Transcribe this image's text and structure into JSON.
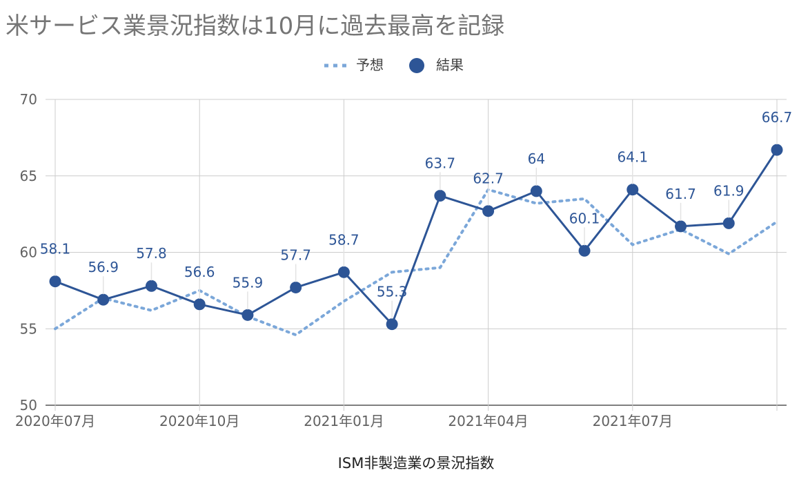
{
  "chart_data": {
    "type": "line",
    "title": "米サービス業景況指数は10月に過去最高を記録",
    "xlabel": "ISM非製造業の景況指数",
    "ylabel": "",
    "x": [
      "2020年07月",
      "2020年08月",
      "2020年09月",
      "2020年10月",
      "2020年11月",
      "2020年12月",
      "2021年01月",
      "2021年02月",
      "2021年03月",
      "2021年04月",
      "2021年05月",
      "2021年06月",
      "2021年07月",
      "2021年08月",
      "2021年09月",
      "2021年10月"
    ],
    "x_tick_labels": [
      "2020年07月",
      "2020年10月",
      "2021年01月",
      "2021年04月",
      "2021年07月"
    ],
    "x_tick_indices": [
      0,
      3,
      6,
      9,
      12
    ],
    "y_ticks": [
      50,
      55,
      60,
      65,
      70
    ],
    "ylim": [
      50,
      70
    ],
    "grid": true,
    "legend_position": "top",
    "series": [
      {
        "name": "予想",
        "style": "dotted",
        "color": "#7ba7d9",
        "values": [
          55.0,
          57.0,
          56.2,
          57.5,
          55.8,
          54.6,
          56.8,
          58.7,
          59.0,
          64.1,
          63.2,
          63.5,
          60.5,
          61.5,
          59.9,
          62.0
        ]
      },
      {
        "name": "結果",
        "style": "solid-markers",
        "color": "#2d5596",
        "values": [
          58.1,
          56.9,
          57.8,
          56.6,
          55.9,
          57.7,
          58.7,
          55.3,
          63.7,
          62.7,
          64,
          60.1,
          64.1,
          61.7,
          61.9,
          66.7
        ],
        "data_labels": [
          "58.1",
          "56.9",
          "57.8",
          "56.6",
          "55.9",
          "57.7",
          "58.7",
          "55.3",
          "63.7",
          "62.7",
          "64",
          "60.1",
          "64.1",
          "61.7",
          "61.9",
          "66.7"
        ]
      }
    ]
  }
}
